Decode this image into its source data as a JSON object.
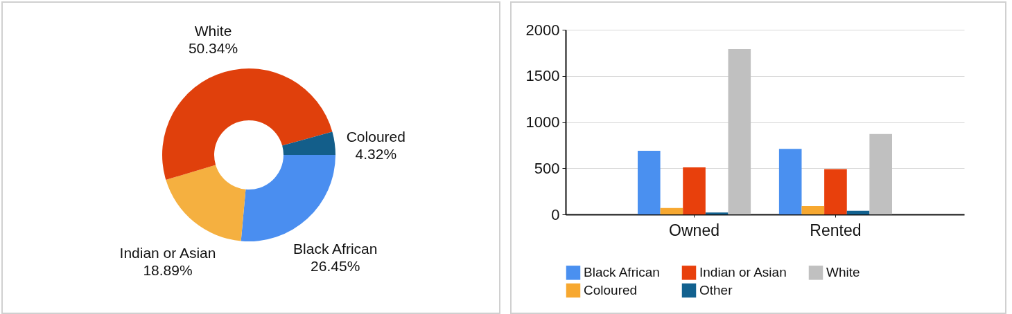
{
  "chart_data": [
    {
      "type": "donut",
      "categories": [
        "Black African",
        "Indian or Asian",
        "White",
        "Coloured"
      ],
      "values": [
        26.45,
        18.89,
        50.34,
        4.32
      ],
      "colors": [
        "#4a8ef0",
        "#f5b040",
        "#e0400c",
        "#135e8a"
      ],
      "value_labels": [
        "26.45%",
        "18.89%",
        "50.34%",
        "4.32%"
      ]
    },
    {
      "type": "bar",
      "categories": [
        "Owned",
        "Rented"
      ],
      "series": [
        {
          "name": "Black African",
          "color": "#4a90f0",
          "values": [
            690,
            710
          ]
        },
        {
          "name": "Coloured",
          "color": "#f7a830",
          "values": [
            70,
            90
          ]
        },
        {
          "name": "Indian or Asian",
          "color": "#e8400c",
          "values": [
            510,
            490
          ]
        },
        {
          "name": "Other",
          "color": "#12618f",
          "values": [
            20,
            40
          ]
        },
        {
          "name": "White",
          "color": "#c0c0c0",
          "values": [
            1790,
            870
          ]
        }
      ],
      "ylim": [
        0,
        2000
      ],
      "yticks": [
        0,
        500,
        1000,
        1500,
        2000
      ],
      "grid": "y",
      "legend": "bottom"
    }
  ]
}
